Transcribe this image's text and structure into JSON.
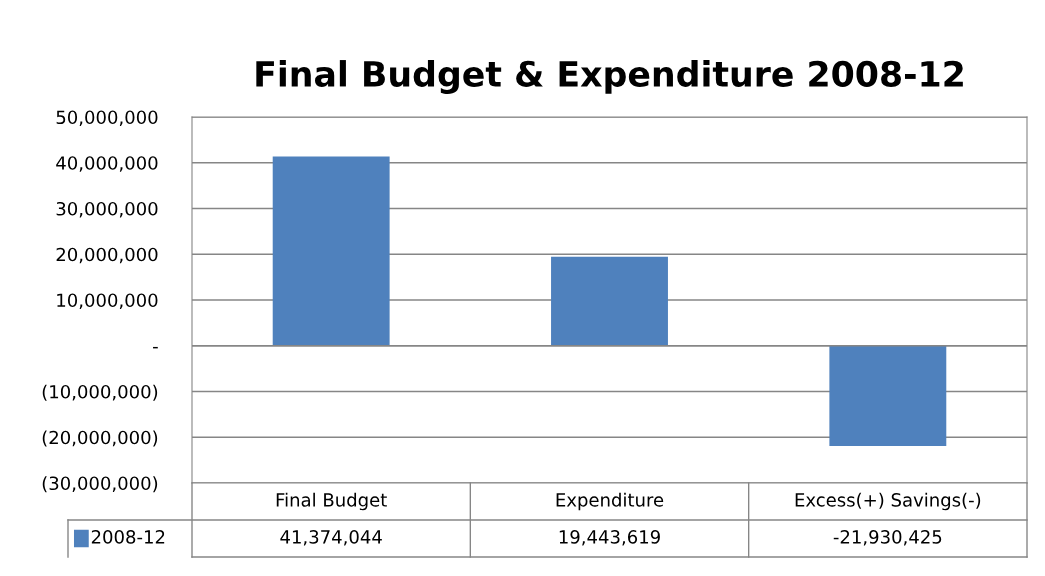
{
  "chart_data": {
    "type": "bar",
    "title": "Final Budget & Expenditure 2008-12",
    "categories": [
      "Final Budget",
      "Expenditure",
      "Excess(+) Savings(-)"
    ],
    "series": [
      {
        "name": "2008-12",
        "color": "#4f81bd",
        "values": [
          41374044,
          19443619,
          -21930425
        ],
        "value_labels": [
          "41,374,044",
          "19,443,619",
          "-21,930,425"
        ]
      }
    ],
    "ylim": [
      -30000000,
      50000000
    ],
    "yticks": [
      {
        "value": -30000000,
        "label": "(30,000,000)"
      },
      {
        "value": -20000000,
        "label": "(20,000,000)"
      },
      {
        "value": -10000000,
        "label": "(10,000,000)"
      },
      {
        "value": 0,
        "label": "-"
      },
      {
        "value": 10000000,
        "label": "10,000,000"
      },
      {
        "value": 20000000,
        "label": "20,000,000"
      },
      {
        "value": 30000000,
        "label": "30,000,000"
      },
      {
        "value": 40000000,
        "label": "40,000,000"
      },
      {
        "value": 50000000,
        "label": "50,000,000"
      }
    ],
    "grid": "y",
    "legend": "bottom"
  }
}
